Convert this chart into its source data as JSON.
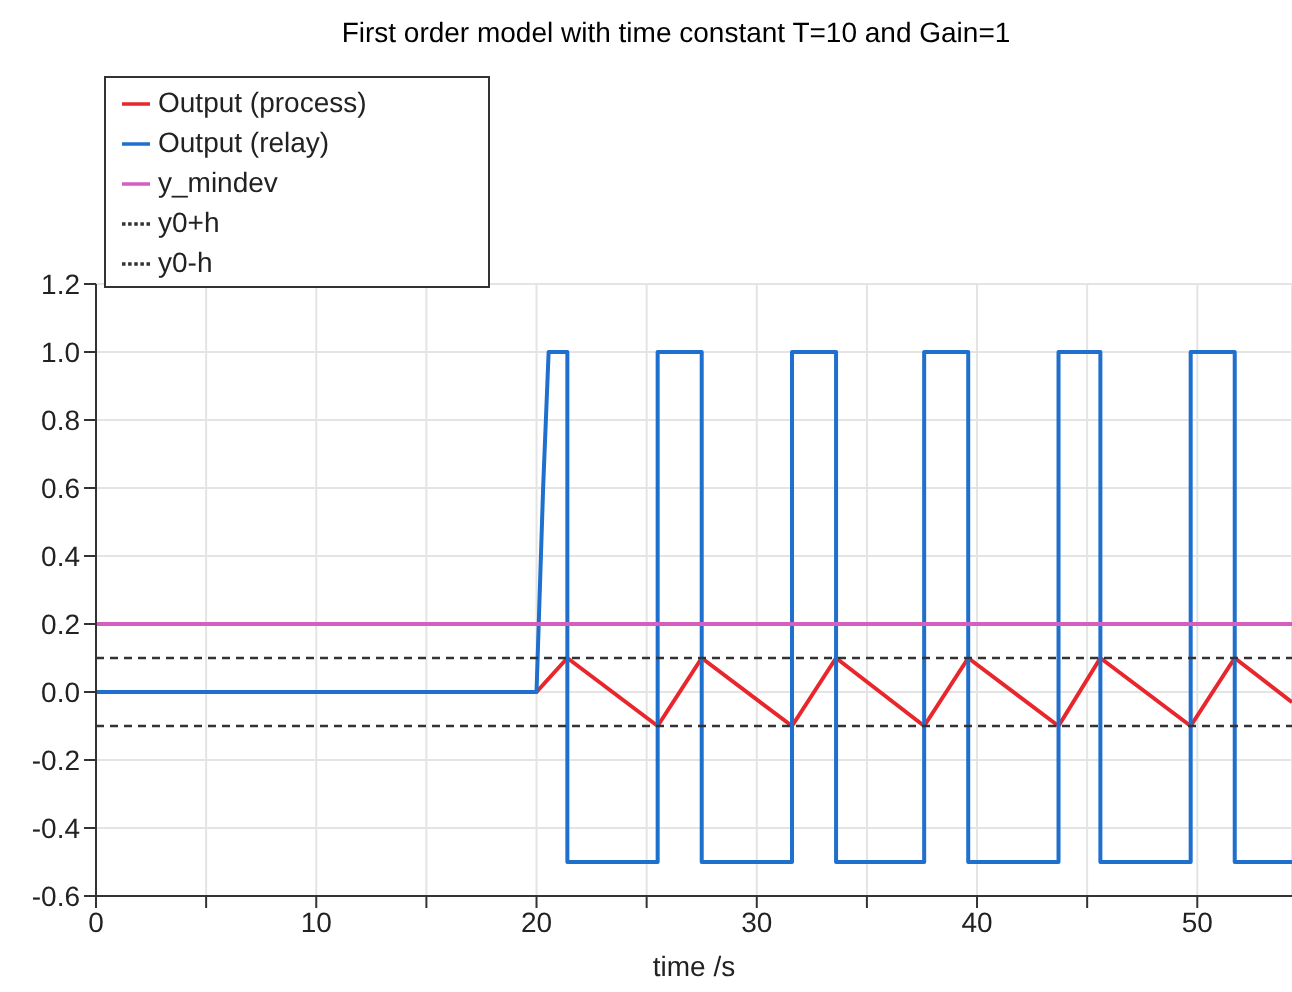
{
  "chart_data": {
    "type": "line",
    "title": "First order model with time constant T=10 and Gain=1",
    "xlabel": "time /s",
    "xlim": [
      0,
      54.3
    ],
    "xticks": [
      0,
      {
        "value": 5,
        "label": null
      },
      10,
      {
        "value": 15,
        "label": null
      },
      20,
      {
        "value": 25,
        "label": null
      },
      30,
      {
        "value": 35,
        "label": null
      },
      40,
      {
        "value": 45,
        "label": null
      },
      50
    ],
    "ylim": [
      -0.6,
      1.2
    ],
    "yticks": [
      {
        "value": -0.6,
        "label": "-0.6"
      },
      {
        "value": -0.4,
        "label": "-0.4"
      },
      {
        "value": -0.2,
        "label": "-0.2"
      },
      {
        "value": 0,
        "label": "0.0"
      },
      {
        "value": 0.2,
        "label": "0.2"
      },
      {
        "value": 0.4,
        "label": "0.4"
      },
      {
        "value": 0.6,
        "label": "0.6"
      },
      {
        "value": 0.8,
        "label": "0.8"
      },
      {
        "value": 1,
        "label": "1.0"
      },
      {
        "value": 1.2,
        "label": "1.2"
      }
    ],
    "grid": true,
    "legend": "top left",
    "marker": "none",
    "series": [
      {
        "name": "Output (process)",
        "color": "#e8262b",
        "x": [
          0,
          20,
          21.4,
          25.5,
          27.5,
          31.6,
          33.6,
          37.6,
          39.6,
          43.7,
          45.6,
          49.7,
          51.7,
          54.3
        ],
        "values": [
          0,
          0,
          0.1,
          -0.1,
          0.1,
          -0.1,
          0.1,
          -0.1,
          0.1,
          -0.1,
          0.1,
          -0.1,
          0.1,
          -0.03
        ]
      },
      {
        "name": "Output (relay)",
        "color": "#1f6fce",
        "x": [
          0,
          20,
          20.05,
          20.3,
          20.55,
          21.4,
          21.4,
          25.5,
          25.5,
          27.5,
          27.5,
          31.6,
          31.6,
          33.6,
          33.6,
          37.6,
          37.6,
          39.6,
          39.6,
          43.7,
          43.7,
          45.6,
          45.6,
          49.7,
          49.7,
          51.7,
          51.7,
          54.3
        ],
        "values": [
          0,
          0,
          0.1,
          0.6,
          1,
          1,
          -0.5,
          -0.5,
          1,
          1,
          -0.5,
          -0.5,
          1,
          1,
          -0.5,
          -0.5,
          1,
          1,
          -0.5,
          -0.5,
          1,
          1,
          -0.5,
          -0.5,
          1,
          1,
          -0.5,
          -0.5
        ]
      },
      {
        "name": "y_mindev",
        "color": "#d45fc0",
        "x": [
          0,
          54.3
        ],
        "values": [
          0.2,
          0.2
        ]
      },
      {
        "name": "y0+h",
        "color": "#333333",
        "line_style": "dashed",
        "x": [
          0,
          54.3
        ],
        "values": [
          0.1,
          0.1
        ]
      },
      {
        "name": "y0-h",
        "color": "#333333",
        "line_style": "dashed",
        "x": [
          0,
          54.3
        ],
        "values": [
          -0.1,
          -0.1
        ]
      }
    ]
  }
}
